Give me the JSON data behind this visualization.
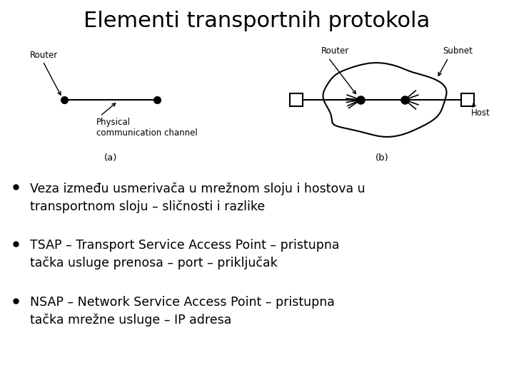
{
  "title": "Elementi transportnih protokola",
  "title_fontsize": 22,
  "background_color": "#ffffff",
  "bullet_points": [
    "Veza između usmerivača u mrežnom sloju i hostova u\ntransportnom sloju – sličnosti i razlike",
    "TSAP – Transport Service Access Point – pristupna\ntačka usluge prenosa – port – priključak",
    "NSAP – Network Service Access Point – pristupna\ntačka mrežne usluge – IP adresa"
  ],
  "bullet_fontsize": 12.5,
  "diagram_label_a": "(a)",
  "diagram_label_b": "(b)",
  "label_router_a": "Router",
  "label_router_b": "Router",
  "label_subnet": "Subnet",
  "label_host": "Host",
  "label_channel": "Physical\ncommunication channel",
  "diag_font": 8.5
}
